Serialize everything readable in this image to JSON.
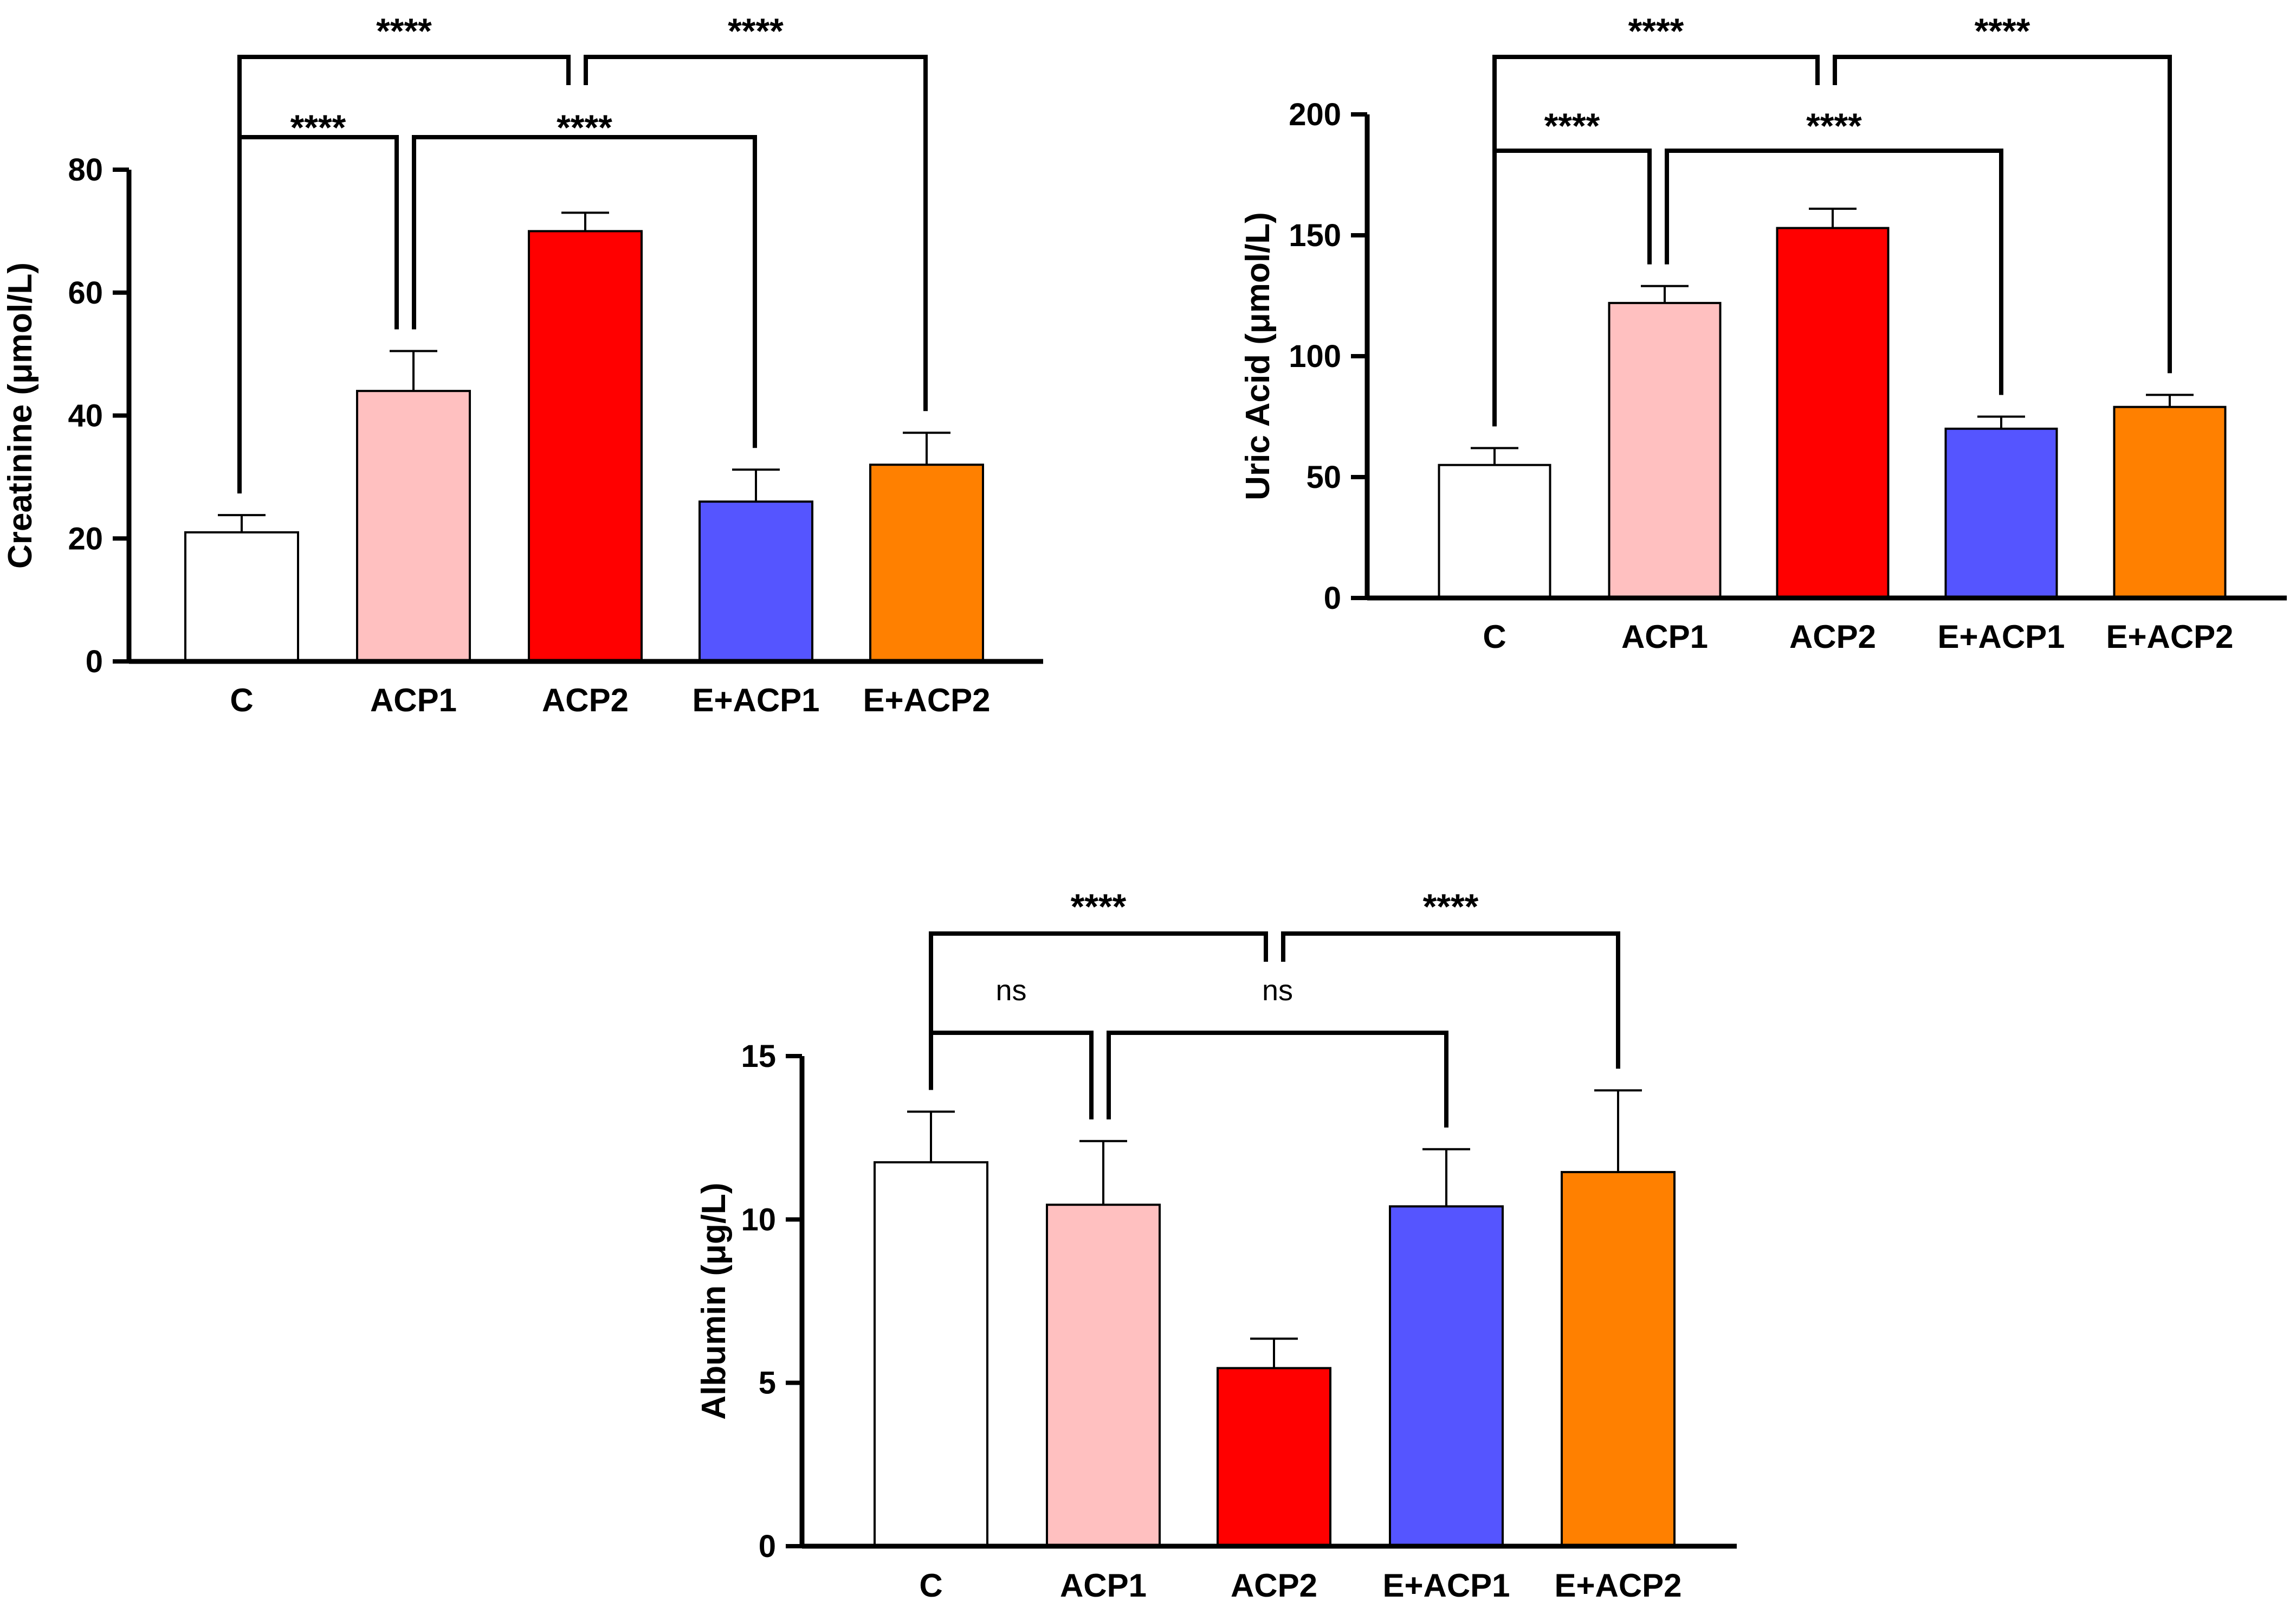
{
  "chart_data": [
    {
      "type": "bar",
      "ylabel": "Creatinine (μmol/L)",
      "categories": [
        "C",
        "ACP1",
        "ACP2",
        "E+ACP1",
        "E+ACP2"
      ],
      "values": [
        21,
        44,
        70,
        26,
        32
      ],
      "errors": [
        2.8,
        6.5,
        3.0,
        5.2,
        5.2
      ],
      "colors": [
        "#ffffff",
        "#ffc0c0",
        "#ff0000",
        "#5555ff",
        "#ff8000"
      ],
      "ylim": [
        0,
        80
      ],
      "yticks": [
        "0",
        "20",
        "40",
        "60",
        "80"
      ],
      "brackets": [
        {
          "label": "****",
          "group": "inner"
        },
        {
          "label": "****",
          "group": "inner"
        },
        {
          "label": "****",
          "group": "outer"
        },
        {
          "label": "****",
          "group": "outer"
        }
      ]
    },
    {
      "type": "bar",
      "ylabel": "Uric Acid  (μmol/L)",
      "categories": [
        "C",
        "ACP1",
        "ACP2",
        "E+ACP1",
        "E+ACP2"
      ],
      "values": [
        55,
        122,
        153,
        70,
        79
      ],
      "errors": [
        7,
        7,
        8,
        5,
        5
      ],
      "colors": [
        "#ffffff",
        "#ffc0c0",
        "#ff0000",
        "#5555ff",
        "#ff8000"
      ],
      "ylim": [
        0,
        200
      ],
      "yticks": [
        "0",
        "50",
        "100",
        "150",
        "200"
      ],
      "brackets": [
        {
          "label": "****",
          "group": "inner"
        },
        {
          "label": "****",
          "group": "inner"
        },
        {
          "label": "****",
          "group": "outer"
        },
        {
          "label": "****",
          "group": "outer"
        }
      ]
    },
    {
      "type": "bar",
      "ylabel": "Albumin (μg/L)",
      "categories": [
        "C",
        "ACP1",
        "ACP2",
        "E+ACP1",
        "E+ACP2"
      ],
      "values": [
        11.75,
        10.45,
        5.45,
        10.4,
        11.45
      ],
      "errors": [
        1.55,
        1.95,
        0.9,
        1.75,
        2.5
      ],
      "colors": [
        "#ffffff",
        "#ffc0c0",
        "#ff0000",
        "#5555ff",
        "#ff8000"
      ],
      "ylim": [
        0,
        15
      ],
      "yticks": [
        "0",
        "5",
        "10",
        "15"
      ],
      "brackets": [
        {
          "label": "ns",
          "group": "inner"
        },
        {
          "label": "ns",
          "group": "inner"
        },
        {
          "label": "****",
          "group": "outer"
        },
        {
          "label": "****",
          "group": "outer"
        }
      ]
    }
  ]
}
